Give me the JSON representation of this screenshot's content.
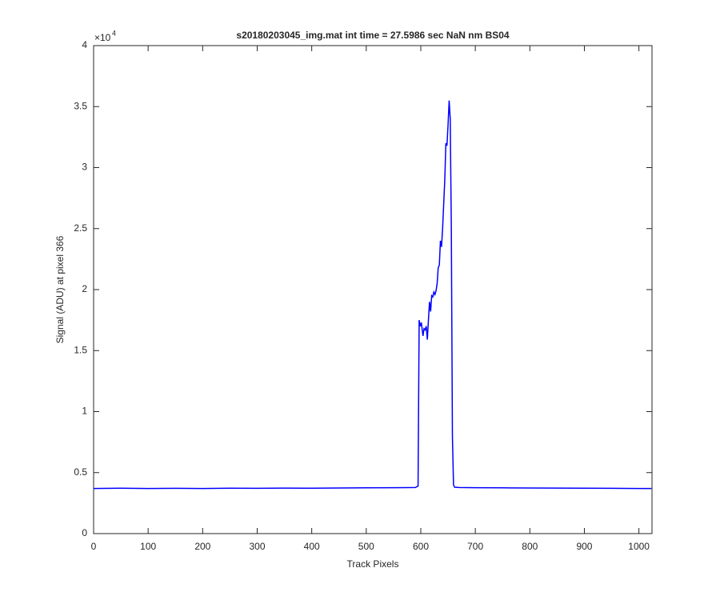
{
  "chart_data": {
    "type": "line",
    "title": "s20180203045_img.mat int time = 27.5986 sec  NaN nm BS04",
    "x_label": "Track Pixels",
    "y_label": "Signal (ADU) at pixel 366",
    "y_multiplier": {
      "base": "×10",
      "exponent": "4"
    },
    "x": [
      0,
      50,
      100,
      150,
      200,
      250,
      300,
      350,
      400,
      450,
      500,
      550,
      590,
      595,
      597,
      599,
      601,
      604,
      606,
      608,
      610,
      612,
      614,
      616,
      618,
      620,
      622,
      624,
      626,
      628,
      630,
      632,
      634,
      636,
      638,
      640,
      642,
      644,
      646,
      648,
      650,
      652,
      654,
      656,
      658,
      660,
      662,
      670,
      700,
      750,
      800,
      850,
      900,
      950,
      1000,
      1023
    ],
    "series": [
      {
        "name": "signal",
        "color": "#0000ff",
        "values": [
          3700,
          3720,
          3700,
          3710,
          3700,
          3720,
          3710,
          3730,
          3720,
          3740,
          3750,
          3760,
          3780,
          3900,
          17500,
          17000,
          17300,
          16200,
          16800,
          16700,
          17000,
          15900,
          17500,
          19000,
          18200,
          19500,
          19400,
          19800,
          19600,
          19900,
          20500,
          21800,
          22000,
          24000,
          23500,
          25000,
          27000,
          29000,
          32000,
          31800,
          33500,
          35500,
          34000,
          25000,
          8000,
          4000,
          3800,
          3780,
          3760,
          3750,
          3740,
          3730,
          3720,
          3710,
          3700,
          3700
        ]
      }
    ],
    "xlim": [
      0,
      1024
    ],
    "xticks": [
      0,
      100,
      200,
      300,
      400,
      500,
      600,
      700,
      800,
      900,
      1000
    ],
    "ylim": [
      0,
      40000
    ],
    "yticks": [
      0,
      {
        "value": 5000,
        "label": "0.5"
      },
      {
        "value": 10000,
        "label": "1"
      },
      {
        "value": 15000,
        "label": "1.5"
      },
      {
        "value": 20000,
        "label": "2"
      },
      {
        "value": 25000,
        "label": "2.5"
      },
      {
        "value": 30000,
        "label": "3"
      },
      {
        "value": 35000,
        "label": "3.5"
      },
      {
        "value": 40000,
        "label": "4"
      }
    ],
    "grid": false
  }
}
